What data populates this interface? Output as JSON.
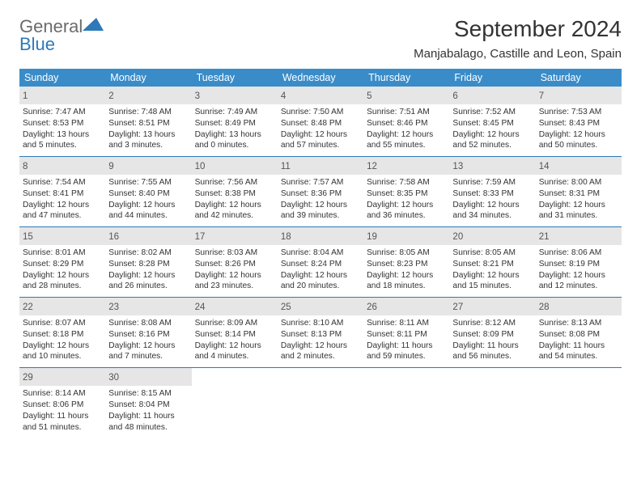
{
  "brand": {
    "name_part1": "General",
    "name_part2": "Blue"
  },
  "title": "September 2024",
  "location": "Manjabalago, Castille and Leon, Spain",
  "colors": {
    "header_bg": "#3a8cc9",
    "header_text": "#ffffff",
    "daynum_bg": "#e6e6e6",
    "week_border": "#2e79b8",
    "body_text": "#333333",
    "logo_gray": "#6b6b6b",
    "logo_blue": "#2e79b8"
  },
  "typography": {
    "title_fontsize": 28,
    "dayname_fontsize": 12.5,
    "daynum_fontsize": 11.5,
    "line_fontsize": 10.2
  },
  "daynames": [
    "Sunday",
    "Monday",
    "Tuesday",
    "Wednesday",
    "Thursday",
    "Friday",
    "Saturday"
  ],
  "days": [
    {
      "n": "1",
      "sr": "7:47 AM",
      "ss": "8:53 PM",
      "dl": "13 hours and 5 minutes."
    },
    {
      "n": "2",
      "sr": "7:48 AM",
      "ss": "8:51 PM",
      "dl": "13 hours and 3 minutes."
    },
    {
      "n": "3",
      "sr": "7:49 AM",
      "ss": "8:49 PM",
      "dl": "13 hours and 0 minutes."
    },
    {
      "n": "4",
      "sr": "7:50 AM",
      "ss": "8:48 PM",
      "dl": "12 hours and 57 minutes."
    },
    {
      "n": "5",
      "sr": "7:51 AM",
      "ss": "8:46 PM",
      "dl": "12 hours and 55 minutes."
    },
    {
      "n": "6",
      "sr": "7:52 AM",
      "ss": "8:45 PM",
      "dl": "12 hours and 52 minutes."
    },
    {
      "n": "7",
      "sr": "7:53 AM",
      "ss": "8:43 PM",
      "dl": "12 hours and 50 minutes."
    },
    {
      "n": "8",
      "sr": "7:54 AM",
      "ss": "8:41 PM",
      "dl": "12 hours and 47 minutes."
    },
    {
      "n": "9",
      "sr": "7:55 AM",
      "ss": "8:40 PM",
      "dl": "12 hours and 44 minutes."
    },
    {
      "n": "10",
      "sr": "7:56 AM",
      "ss": "8:38 PM",
      "dl": "12 hours and 42 minutes."
    },
    {
      "n": "11",
      "sr": "7:57 AM",
      "ss": "8:36 PM",
      "dl": "12 hours and 39 minutes."
    },
    {
      "n": "12",
      "sr": "7:58 AM",
      "ss": "8:35 PM",
      "dl": "12 hours and 36 minutes."
    },
    {
      "n": "13",
      "sr": "7:59 AM",
      "ss": "8:33 PM",
      "dl": "12 hours and 34 minutes."
    },
    {
      "n": "14",
      "sr": "8:00 AM",
      "ss": "8:31 PM",
      "dl": "12 hours and 31 minutes."
    },
    {
      "n": "15",
      "sr": "8:01 AM",
      "ss": "8:29 PM",
      "dl": "12 hours and 28 minutes."
    },
    {
      "n": "16",
      "sr": "8:02 AM",
      "ss": "8:28 PM",
      "dl": "12 hours and 26 minutes."
    },
    {
      "n": "17",
      "sr": "8:03 AM",
      "ss": "8:26 PM",
      "dl": "12 hours and 23 minutes."
    },
    {
      "n": "18",
      "sr": "8:04 AM",
      "ss": "8:24 PM",
      "dl": "12 hours and 20 minutes."
    },
    {
      "n": "19",
      "sr": "8:05 AM",
      "ss": "8:23 PM",
      "dl": "12 hours and 18 minutes."
    },
    {
      "n": "20",
      "sr": "8:05 AM",
      "ss": "8:21 PM",
      "dl": "12 hours and 15 minutes."
    },
    {
      "n": "21",
      "sr": "8:06 AM",
      "ss": "8:19 PM",
      "dl": "12 hours and 12 minutes."
    },
    {
      "n": "22",
      "sr": "8:07 AM",
      "ss": "8:18 PM",
      "dl": "12 hours and 10 minutes."
    },
    {
      "n": "23",
      "sr": "8:08 AM",
      "ss": "8:16 PM",
      "dl": "12 hours and 7 minutes."
    },
    {
      "n": "24",
      "sr": "8:09 AM",
      "ss": "8:14 PM",
      "dl": "12 hours and 4 minutes."
    },
    {
      "n": "25",
      "sr": "8:10 AM",
      "ss": "8:13 PM",
      "dl": "12 hours and 2 minutes."
    },
    {
      "n": "26",
      "sr": "8:11 AM",
      "ss": "8:11 PM",
      "dl": "11 hours and 59 minutes."
    },
    {
      "n": "27",
      "sr": "8:12 AM",
      "ss": "8:09 PM",
      "dl": "11 hours and 56 minutes."
    },
    {
      "n": "28",
      "sr": "8:13 AM",
      "ss": "8:08 PM",
      "dl": "11 hours and 54 minutes."
    },
    {
      "n": "29",
      "sr": "8:14 AM",
      "ss": "8:06 PM",
      "dl": "11 hours and 51 minutes."
    },
    {
      "n": "30",
      "sr": "8:15 AM",
      "ss": "8:04 PM",
      "dl": "11 hours and 48 minutes."
    }
  ],
  "labels": {
    "sunrise": "Sunrise:",
    "sunset": "Sunset:",
    "daylight": "Daylight:"
  },
  "layout": {
    "columns": 7,
    "first_weekday_offset": 0,
    "total_days": 30
  }
}
